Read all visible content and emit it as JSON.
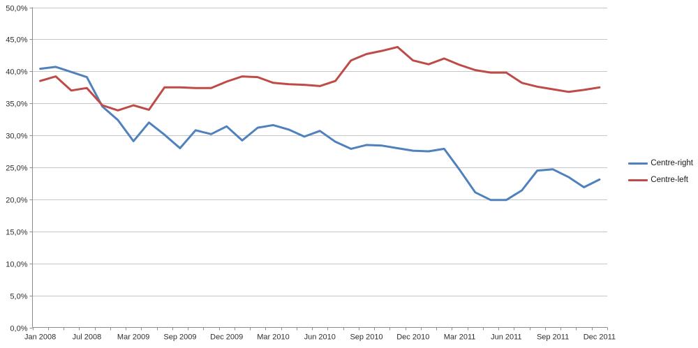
{
  "chart_data": {
    "type": "line",
    "title": "",
    "xlabel": "",
    "ylabel": "",
    "grid": "horizontal",
    "legend_position": "right",
    "categories": [
      "Jan 2008",
      "",
      "",
      "Jul 2008",
      "",
      "",
      "Mar 2009",
      "",
      "",
      "Sep 2009",
      "",
      "",
      "Dec 2009",
      "",
      "",
      "Mar 2010",
      "",
      "",
      "Jun 2010",
      "",
      "",
      "Sep 2010",
      "",
      "",
      "Dec 2010",
      "",
      "",
      "Mar 2011",
      "",
      "",
      "Jun 2011",
      "",
      "",
      "Sep 2011",
      "",
      "",
      "Dec 2011"
    ],
    "x_tick_labels": [
      "Jan 2008",
      "Jul 2008",
      "Mar 2009",
      "Sep 2009",
      "Dec 2009",
      "Mar 2010",
      "Jun 2010",
      "Sep 2010",
      "Dec 2010",
      "Mar 2011",
      "Jun 2011",
      "Sep 2011",
      "Dec 2011"
    ],
    "series": [
      {
        "name": "Centre-right",
        "color": "#4F81BD",
        "values": [
          40.4,
          40.7,
          39.9,
          39.1,
          34.5,
          32.4,
          29.1,
          32.0,
          30.1,
          28.0,
          30.8,
          30.2,
          31.4,
          29.2,
          31.2,
          31.6,
          30.9,
          29.8,
          30.7,
          29.0,
          27.9,
          28.5,
          28.4,
          28.0,
          27.6,
          27.5,
          27.9,
          24.6,
          21.1,
          19.9,
          19.9,
          21.4,
          24.5,
          24.7,
          23.5,
          21.9,
          23.1
        ]
      },
      {
        "name": "Centre-left",
        "color": "#BE4B48",
        "values": [
          38.5,
          39.2,
          37.0,
          37.4,
          34.7,
          33.9,
          34.7,
          34.0,
          37.5,
          37.5,
          37.4,
          37.4,
          38.4,
          39.2,
          39.1,
          38.2,
          38.0,
          37.9,
          37.7,
          38.5,
          41.7,
          42.7,
          43.2,
          43.8,
          41.7,
          41.1,
          42.0,
          41.0,
          40.2,
          39.8,
          39.8,
          38.2,
          37.6,
          37.2,
          36.8,
          37.1,
          37.5
        ]
      }
    ],
    "y_axis": {
      "min": 0,
      "max": 50,
      "step": 5,
      "tick_labels": [
        "0,0%",
        "5,0%",
        "10,0%",
        "15,0%",
        "20,0%",
        "25,0%",
        "30,0%",
        "35,0%",
        "40,0%",
        "45,0%",
        "50,0%"
      ]
    },
    "colors": {
      "gridline": "#c6c6c6",
      "axis": "#8c8c8c",
      "label": "#2e2e2e",
      "background": "#ffffff"
    }
  }
}
